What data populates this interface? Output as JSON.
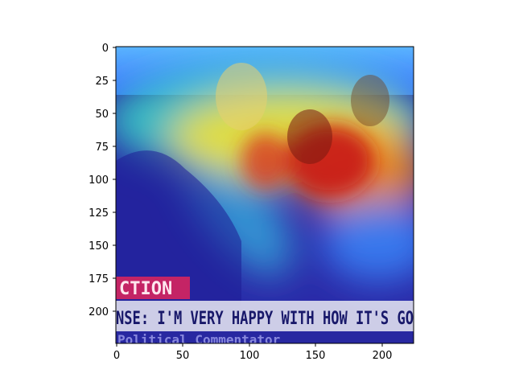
{
  "axes": {
    "x_ticks": [
      "0",
      "50",
      "100",
      "150",
      "200"
    ],
    "y_ticks": [
      "0",
      "25",
      "50",
      "75",
      "100",
      "125",
      "150",
      "175",
      "200"
    ]
  },
  "photo": {
    "banner_label": "CTION",
    "ticker_headline": "NSE: I'M VERY HAPPY WITH HOW IT'S GO",
    "ticker_sub": "Political Commentator"
  },
  "colors": {
    "heat_hot": "#c81414",
    "heat_warm": "#f2e034",
    "heat_mid": "#38d2c8",
    "heat_cool": "#3c64ff",
    "heat_cold": "#1e1e96",
    "banner": "#e0245a",
    "ticker_bg": "#eaeaf2",
    "ticker_text": "#18186a"
  }
}
